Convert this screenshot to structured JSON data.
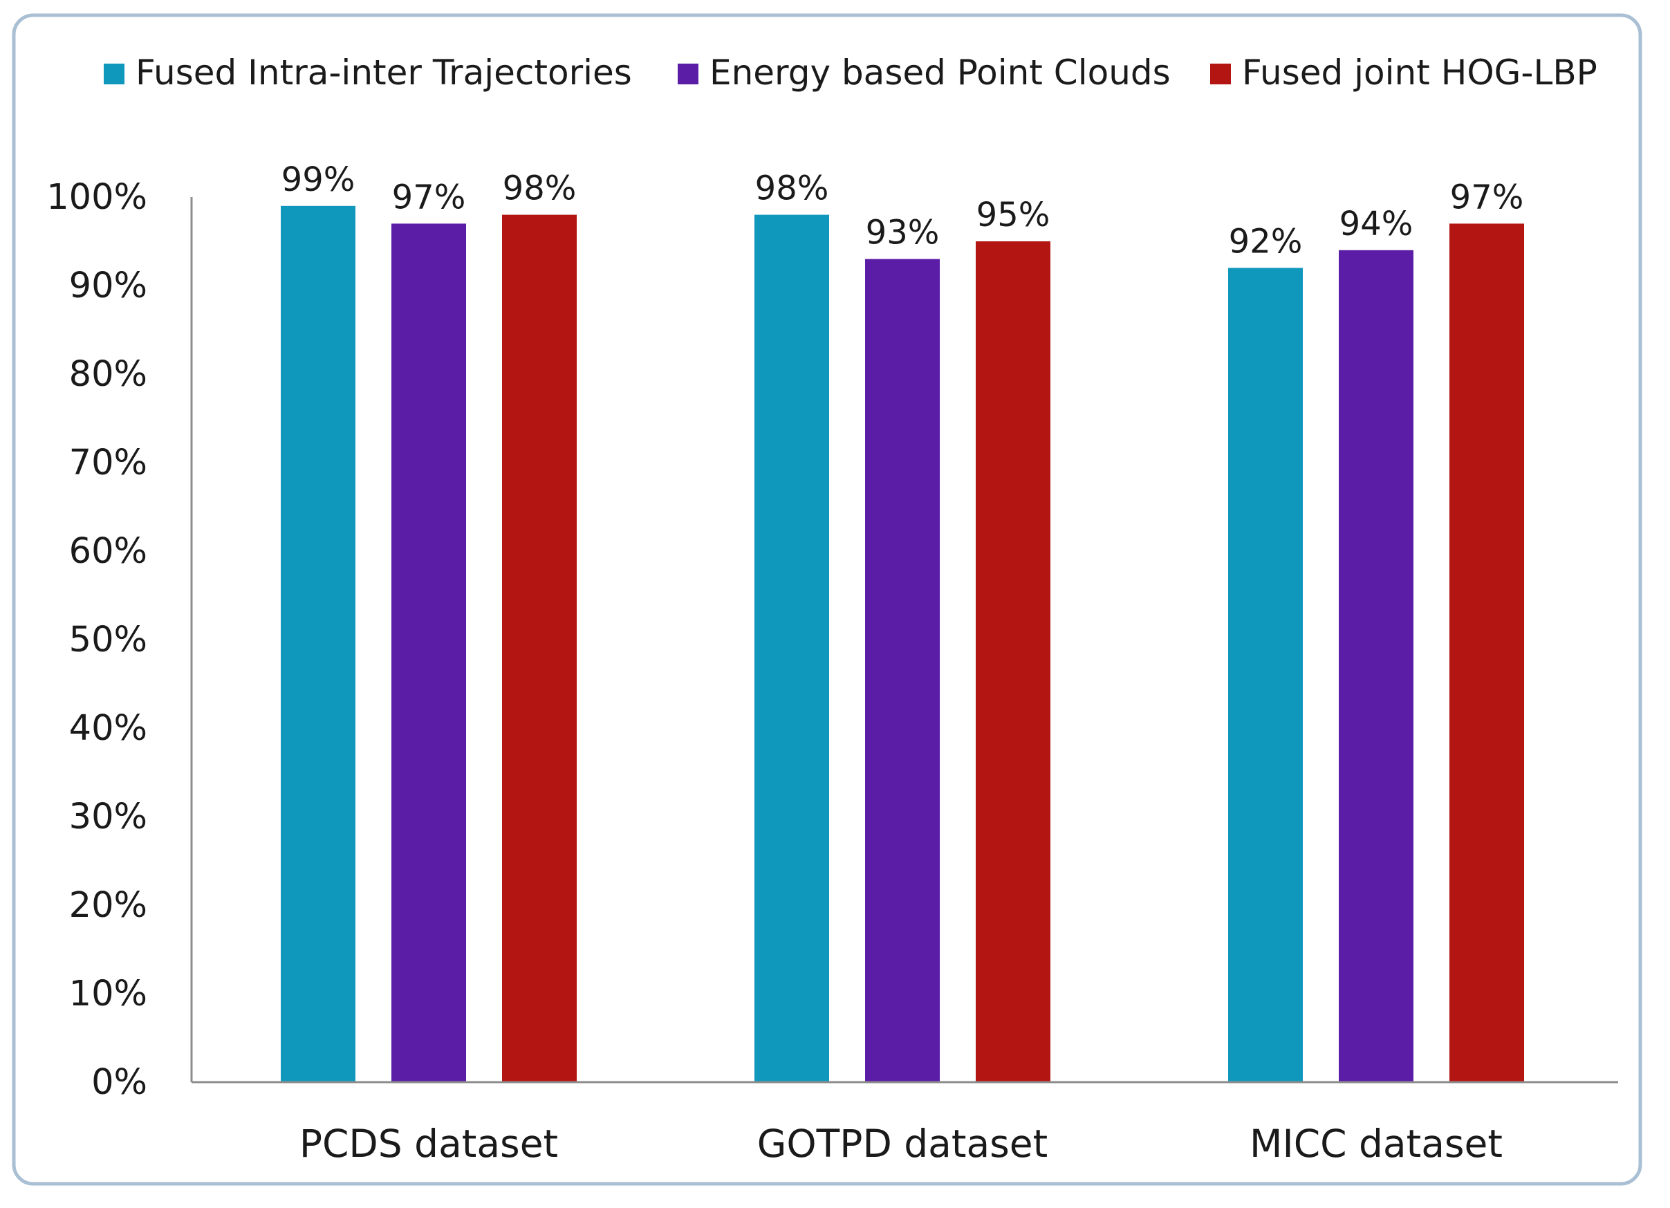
{
  "chart_data": {
    "type": "bar",
    "categories": [
      "PCDS dataset",
      "GOTPD dataset",
      "MICC dataset"
    ],
    "series": [
      {
        "name": "Fused Intra-inter Trajectories",
        "values": [
          99,
          98,
          92
        ],
        "color": "#1098BC"
      },
      {
        "name": "Energy based Point Clouds",
        "values": [
          97,
          93,
          94
        ],
        "color": "#5B1CA6"
      },
      {
        "name": "Fused joint HOG-LBP",
        "values": [
          98,
          95,
          97
        ],
        "color": "#B31512"
      }
    ],
    "data_labels": [
      [
        "99%",
        "98%",
        "92%"
      ],
      [
        "97%",
        "93%",
        "94%"
      ],
      [
        "98%",
        "95%",
        "97%"
      ]
    ],
    "yticks": [
      "0%",
      "10%",
      "20%",
      "30%",
      "40%",
      "50%",
      "60%",
      "70%",
      "80%",
      "90%",
      "100%"
    ],
    "ylim": [
      0,
      100
    ],
    "title": "",
    "xlabel": "",
    "ylabel": "",
    "grid": false,
    "legend_position": "top"
  }
}
